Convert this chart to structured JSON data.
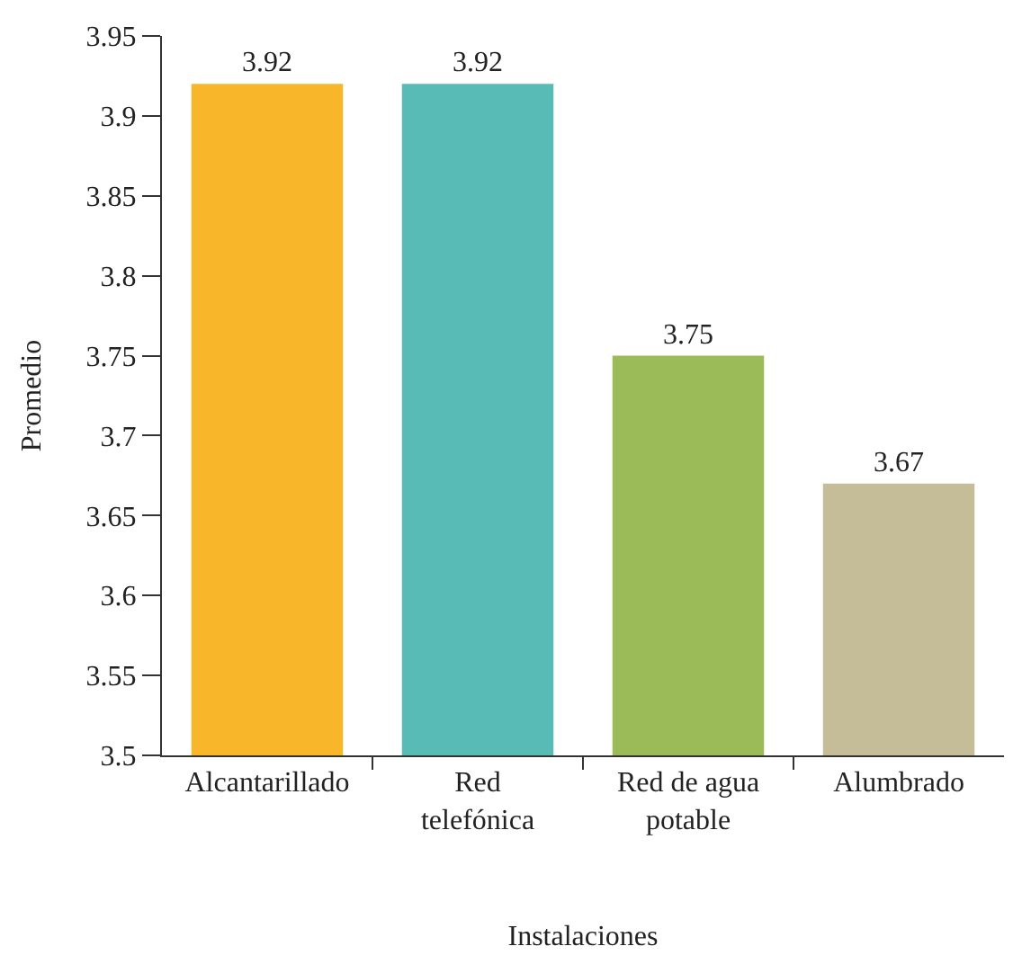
{
  "chart_data": {
    "type": "bar",
    "xlabel": "Instalaciones",
    "ylabel": "Promedio",
    "categories": [
      "Alcantarillado",
      "Red\ntelefónica",
      "Red de agua\npotable",
      "Alumbrado"
    ],
    "values": [
      3.92,
      3.92,
      3.75,
      3.67
    ],
    "colors": [
      "#f8b62a",
      "#58bbb6",
      "#9bbb59",
      "#c4bd97"
    ],
    "ylim": [
      3.5,
      3.95
    ],
    "yticks": [
      3.5,
      3.55,
      3.6,
      3.65,
      3.7,
      3.75,
      3.8,
      3.85,
      3.9,
      3.95
    ],
    "data_labels": true
  }
}
